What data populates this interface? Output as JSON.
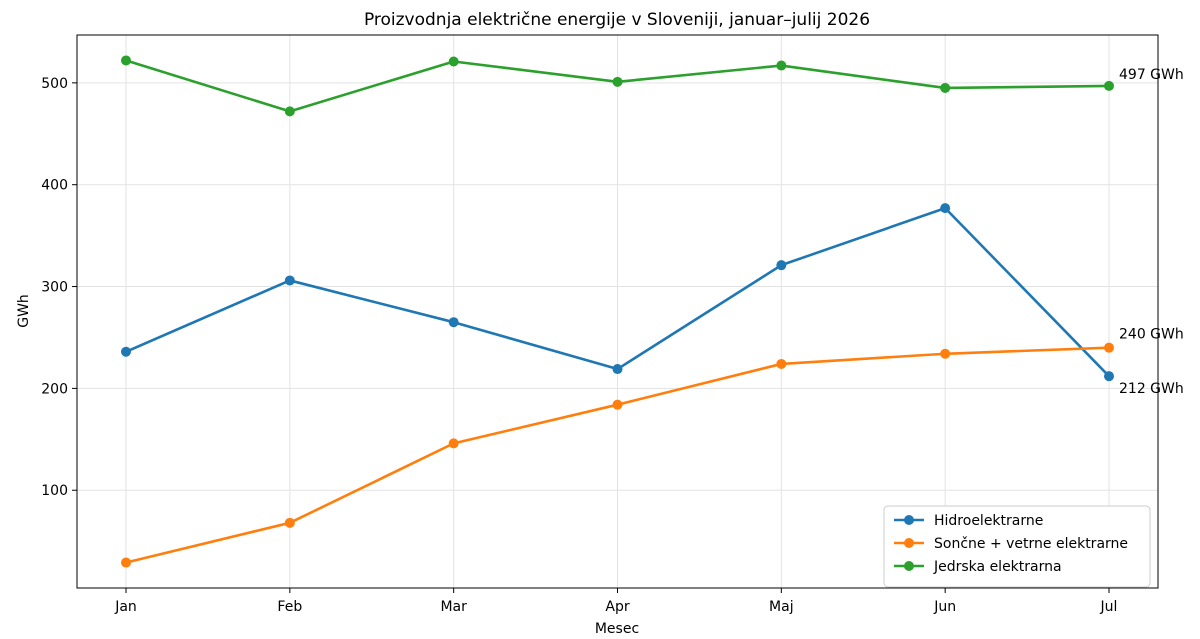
{
  "chart_data": {
    "type": "line",
    "title": "Proizvodnja električne energije v Sloveniji, januar–julij 2026",
    "xlabel": "Mesec",
    "ylabel": "GWh",
    "categories": [
      "Jan",
      "Feb",
      "Mar",
      "Apr",
      "Maj",
      "Jun",
      "Jul"
    ],
    "ylim": [
      4,
      547
    ],
    "yticks": [
      100,
      200,
      300,
      400,
      500
    ],
    "grid": true,
    "legend_position": "bottom-right",
    "series": [
      {
        "name": "Hidroelektrarne",
        "color": "#1f77b4",
        "values": [
          236,
          306,
          265,
          219,
          321,
          377,
          212
        ],
        "end_label": "212 GWh"
      },
      {
        "name": "Sončne + vetrne elektrarne",
        "color": "#ff7f0e",
        "values": [
          29,
          68,
          146,
          184,
          224,
          234,
          240
        ],
        "end_label": "240 GWh"
      },
      {
        "name": "Jedrska elektrarna",
        "color": "#2ca02c",
        "values": [
          522,
          472,
          521,
          501,
          517,
          495,
          497
        ],
        "end_label": "497 GWh"
      }
    ]
  }
}
